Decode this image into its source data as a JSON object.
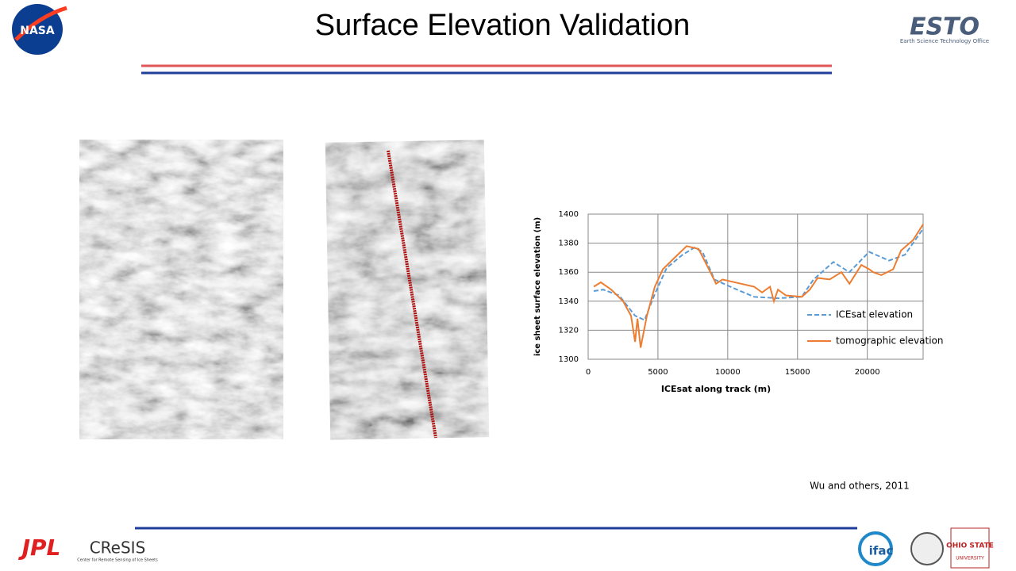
{
  "slide": {
    "title": "Surface Elevation Validation",
    "nasa_logo": "NASA",
    "esto_logo": "ESTO",
    "esto_subtitle": "Earth Science Technology Office",
    "citation": "Wu and others, 2011",
    "jpl_logo": "JPL",
    "cresis_logo": "CReSIS",
    "cresis_subtitle": "Center for Remote Sensing of Ice Sheets",
    "ifac_logo": "ifac",
    "osu_logo": "OHIO STATE",
    "osu_subtitle": "UNIVERSITY"
  },
  "chart_data": {
    "type": "line",
    "xlabel": "ICEsat along track (m)",
    "ylabel": "ice sheet surface elevation (m)",
    "xlim": [
      0,
      24000
    ],
    "xticks": [
      0,
      5000,
      10000,
      15000,
      20000
    ],
    "ylim": [
      1300,
      1400
    ],
    "yticks": [
      1300,
      1320,
      1340,
      1360,
      1380,
      1400
    ],
    "grid": true,
    "legend": "lower right",
    "series": [
      {
        "name": "ICEsat elevation",
        "color": "#5b9bd5",
        "dashed": true,
        "x": [
          400,
          1080,
          2220,
          3360,
          4040,
          4780,
          5630,
          6770,
          7620,
          8190,
          9040,
          10180,
          11890,
          13590,
          15300,
          16150,
          17570,
          18710,
          20130,
          21560,
          22700,
          24000
        ],
        "values": [
          1347,
          1348,
          1344,
          1330,
          1327,
          1345,
          1363,
          1372,
          1377,
          1374,
          1355,
          1350,
          1343,
          1342,
          1343,
          1355,
          1367,
          1360,
          1374,
          1368,
          1372,
          1390
        ]
      },
      {
        "name": "tomographic elevation",
        "color": "#ed7d31",
        "dashed": false,
        "x": [
          400,
          910,
          1650,
          2500,
          3070,
          3360,
          3530,
          3760,
          4210,
          4780,
          5350,
          6200,
          7060,
          7910,
          8760,
          9160,
          9620,
          11890,
          12460,
          13030,
          13310,
          13600,
          14170,
          15310,
          15880,
          16440,
          17300,
          18150,
          18720,
          19570,
          20140,
          20430,
          21000,
          21850,
          22420,
          23270,
          24000
        ],
        "values": [
          1350,
          1353,
          1348,
          1340,
          1330,
          1312,
          1328,
          1308,
          1330,
          1350,
          1362,
          1370,
          1378,
          1376,
          1360,
          1352,
          1355,
          1350,
          1346,
          1350,
          1340,
          1348,
          1344,
          1343,
          1348,
          1356,
          1355,
          1360,
          1352,
          1365,
          1362,
          1360,
          1358,
          1362,
          1375,
          1382,
          1393
        ]
      }
    ]
  }
}
